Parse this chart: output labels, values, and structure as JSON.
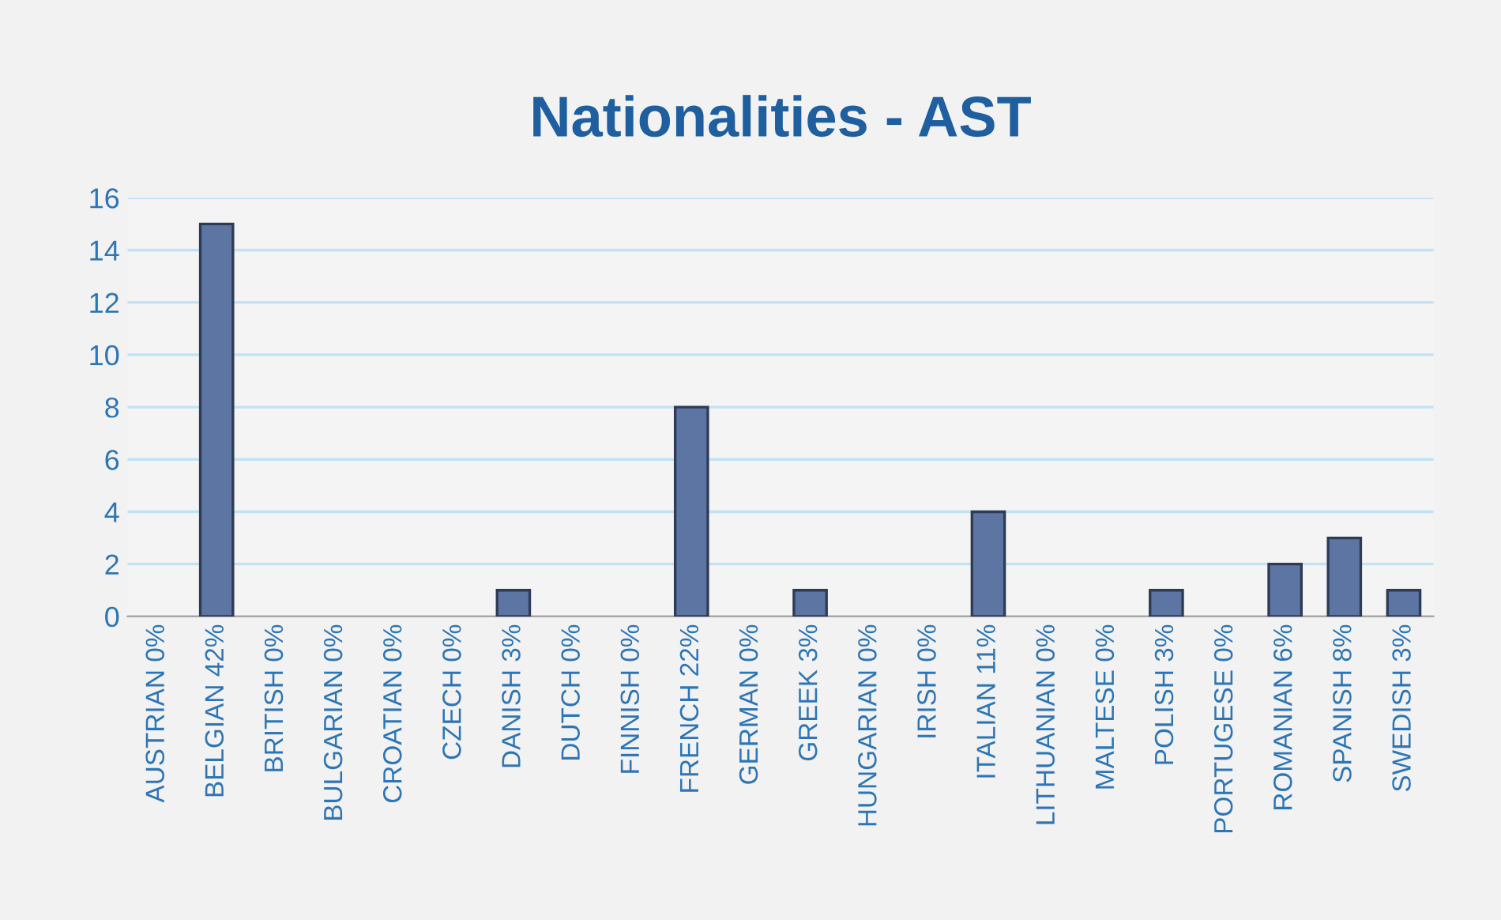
{
  "chart_data": {
    "type": "bar",
    "title": "Nationalities - AST",
    "categories": [
      "AUSTRIAN 0%",
      "BELGIAN 42%",
      "BRITISH 0%",
      "BULGARIAN 0%",
      "CROATIAN 0%",
      "CZECH 0%",
      "DANISH 3%",
      "DUTCH 0%",
      "FINNISH 0%",
      "FRENCH 22%",
      "GERMAN 0%",
      "GREEK 3%",
      "HUNGARIAN 0%",
      "IRISH 0%",
      "ITALIAN 11%",
      "LITHUANIAN 0%",
      "MALTESE 0%",
      "POLISH 3%",
      "PORTUGESE 0%",
      "ROMANIAN 6%",
      "SPANISH 8%",
      "SWEDISH 3%"
    ],
    "values": [
      0,
      15,
      0,
      0,
      0,
      0,
      1,
      0,
      0,
      8,
      0,
      1,
      0,
      0,
      4,
      0,
      0,
      1,
      0,
      2,
      3,
      1
    ],
    "color": "#5d75a3",
    "ylim": [
      0,
      16
    ],
    "yticks": [
      0,
      2,
      4,
      6,
      8,
      10,
      12,
      14,
      16
    ],
    "grid": "y",
    "legend": false
  }
}
